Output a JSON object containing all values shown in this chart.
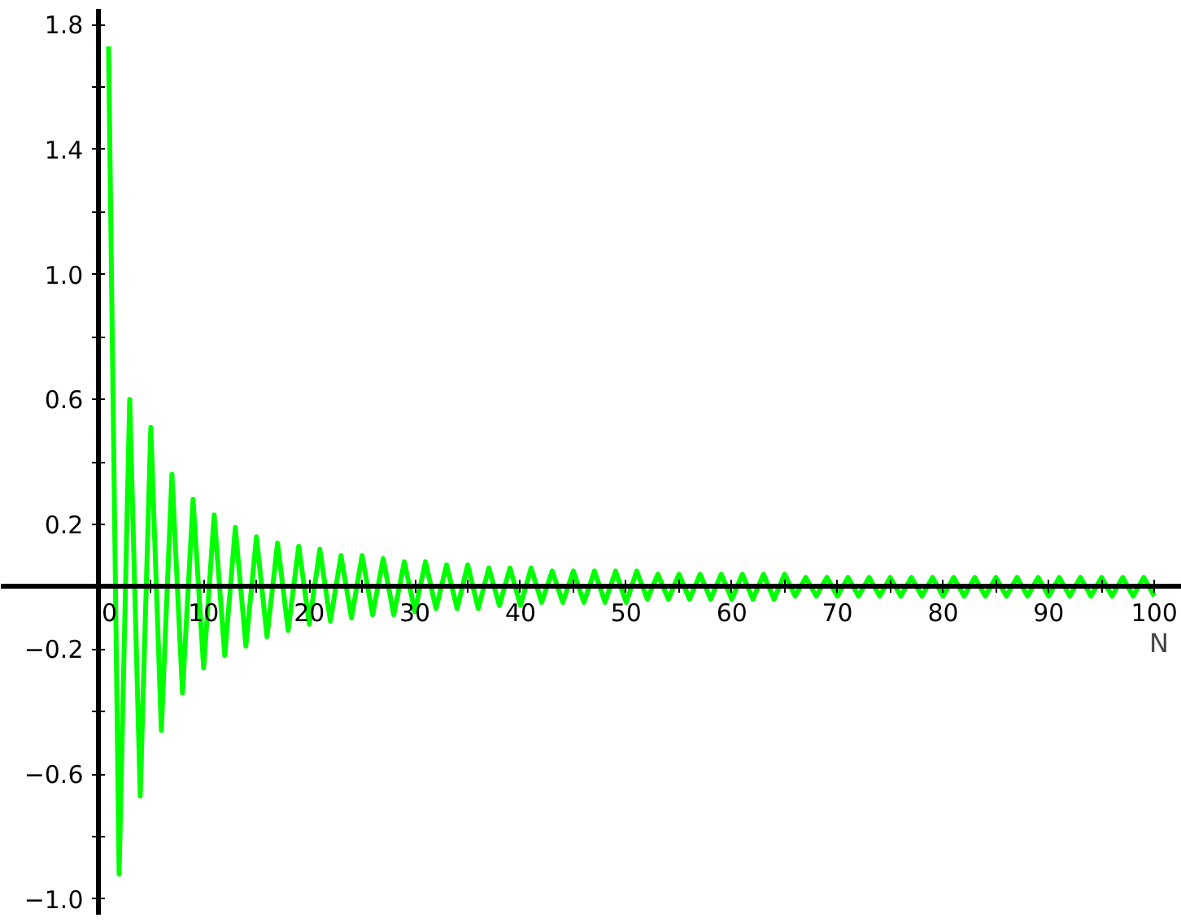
{
  "chart_data": {
    "type": "line",
    "xlabel": "N",
    "x": [
      1,
      2,
      3,
      4,
      5,
      6,
      7,
      8,
      9,
      10,
      11,
      12,
      13,
      14,
      15,
      16,
      17,
      18,
      19,
      20,
      21,
      22,
      23,
      24,
      25,
      26,
      27,
      28,
      29,
      30,
      31,
      32,
      33,
      34,
      35,
      36,
      37,
      38,
      39,
      40,
      41,
      42,
      43,
      44,
      45,
      46,
      47,
      48,
      49,
      50,
      51,
      52,
      53,
      54,
      55,
      56,
      57,
      58,
      59,
      60,
      61,
      62,
      63,
      64,
      65,
      66,
      67,
      68,
      69,
      70,
      71,
      72,
      73,
      74,
      75,
      76,
      77,
      78,
      79,
      80,
      81,
      82,
      83,
      84,
      85,
      86,
      87,
      88,
      89,
      90,
      91,
      92,
      93,
      94,
      95,
      96,
      97,
      98,
      99,
      100
    ],
    "series": [
      {
        "color": "#00ff00",
        "values": [
          1.73,
          -0.92,
          0.6,
          -0.67,
          0.51,
          -0.46,
          0.36,
          -0.34,
          0.28,
          -0.26,
          0.23,
          -0.22,
          0.19,
          -0.19,
          0.16,
          -0.16,
          0.14,
          -0.14,
          0.13,
          -0.12,
          0.12,
          -0.11,
          0.1,
          -0.1,
          0.1,
          -0.09,
          0.09,
          -0.09,
          0.08,
          -0.08,
          0.08,
          -0.07,
          0.07,
          -0.07,
          0.07,
          -0.07,
          0.06,
          -0.06,
          0.06,
          -0.06,
          0.06,
          -0.05,
          0.05,
          -0.05,
          0.05,
          -0.05,
          0.05,
          -0.05,
          0.05,
          -0.05,
          0.05,
          -0.04,
          0.04,
          -0.04,
          0.04,
          -0.04,
          0.04,
          -0.04,
          0.04,
          -0.04,
          0.04,
          -0.04,
          0.04,
          -0.04,
          0.04,
          -0.03,
          0.03,
          -0.03,
          0.03,
          -0.03,
          0.03,
          -0.03,
          0.03,
          -0.03,
          0.03,
          -0.03,
          0.03,
          -0.03,
          0.03,
          -0.03,
          0.03,
          -0.03,
          0.03,
          -0.03,
          0.03,
          -0.03,
          0.03,
          -0.03,
          0.03,
          -0.03,
          0.03,
          -0.03,
          0.03,
          -0.03,
          0.03,
          -0.03,
          0.03,
          -0.03,
          0.03,
          -0.03
        ]
      }
    ],
    "xlim": [
      -9.2,
      102.6
    ],
    "ylim": [
      -1.05,
      1.85
    ],
    "xticks": [
      0,
      {
        "value": 5,
        "label": null
      },
      10,
      {
        "value": 15,
        "label": null
      },
      20,
      {
        "value": 25,
        "label": null
      },
      30,
      {
        "value": 35,
        "label": null
      },
      40,
      {
        "value": 45,
        "label": null
      },
      50,
      {
        "value": 55,
        "label": null
      },
      60,
      {
        "value": 65,
        "label": null
      },
      70,
      {
        "value": 75,
        "label": null
      },
      80,
      {
        "value": 85,
        "label": null
      },
      90,
      {
        "value": 95,
        "label": null
      },
      100
    ],
    "yticks": [
      {
        "value": -1.0,
        "label": "−1.0"
      },
      {
        "value": -0.8,
        "label": null
      },
      {
        "value": -0.6,
        "label": "−0.6"
      },
      {
        "value": -0.4,
        "label": null
      },
      {
        "value": -0.2,
        "label": "−0.2"
      },
      {
        "value": 0,
        "label": null
      },
      {
        "value": 0.2,
        "label": "0.2"
      },
      {
        "value": 0.4,
        "label": null
      },
      {
        "value": 0.6,
        "label": "0.6"
      },
      {
        "value": 0.8,
        "label": null
      },
      {
        "value": 1.0,
        "label": "1.0"
      },
      {
        "value": 1.2,
        "label": null
      },
      {
        "value": 1.4,
        "label": "1.4"
      },
      {
        "value": 1.6,
        "label": null
      },
      {
        "value": 1.8,
        "label": "1.8"
      }
    ]
  }
}
